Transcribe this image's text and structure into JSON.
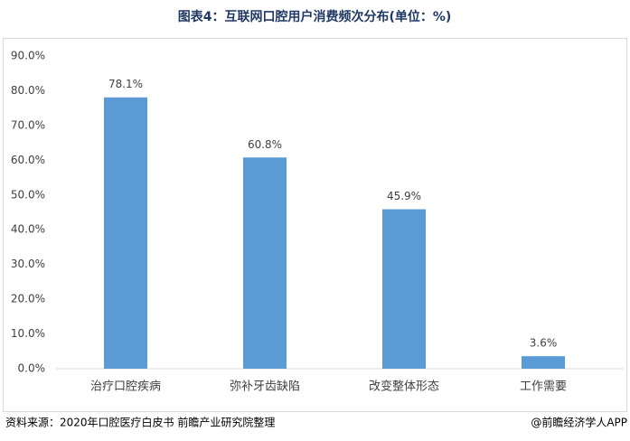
{
  "chart_data": {
    "type": "bar",
    "title": "图表4：互联网口腔用户消费频次分布(单位：%)",
    "categories": [
      "治疗口腔疾病",
      "弥补牙齿缺陷",
      "改变整体形态",
      "工作需要"
    ],
    "values": [
      78.1,
      60.8,
      45.9,
      3.6
    ],
    "value_labels": [
      "78.1%",
      "60.8%",
      "45.9%",
      "3.6%"
    ],
    "color": "#5b9bd5",
    "ylim": [
      0,
      90
    ],
    "yticks": [
      {
        "value": 0,
        "label": "0.0%"
      },
      {
        "value": 10,
        "label": "10.0%"
      },
      {
        "value": 20,
        "label": "20.0%"
      },
      {
        "value": 30,
        "label": "30.0%"
      },
      {
        "value": 40,
        "label": "40.0%"
      },
      {
        "value": 50,
        "label": "50.0%"
      },
      {
        "value": 60,
        "label": "60.0%"
      },
      {
        "value": 70,
        "label": "70.0%"
      },
      {
        "value": 80,
        "label": "80.0%"
      },
      {
        "value": 90,
        "label": "90.0%"
      }
    ],
    "grid": false,
    "source": "资料来源：2020年口腔医疗白皮书 前瞻产业研究院整理",
    "credit": "@前瞻经济学人APP"
  }
}
